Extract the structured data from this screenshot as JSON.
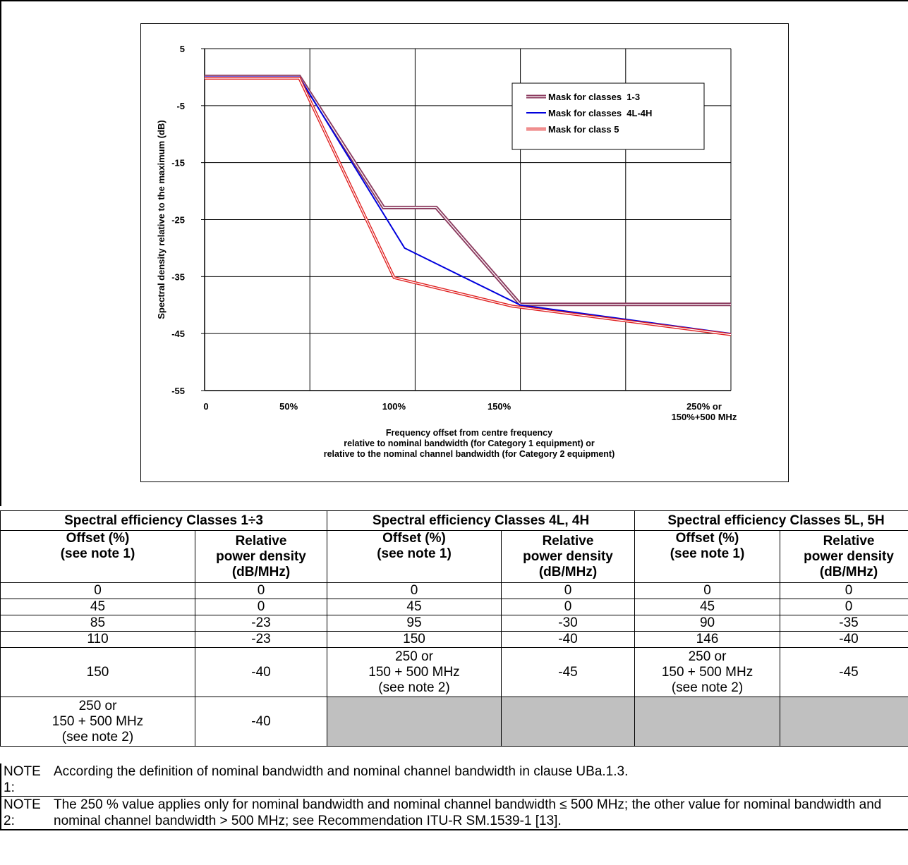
{
  "chart_data": {
    "type": "line",
    "title": "",
    "xlabel_lines": [
      "Frequency offset from centre frequency",
      "relative to nominal bandwidth (for Category 1 equipment) or",
      "relative to the nominal channel bandwidth (for Category 2 equipment)"
    ],
    "ylabel": "Spectral density relative to the maximum (dB)",
    "xlim": [
      0,
      250
    ],
    "ylim": [
      -55,
      5
    ],
    "yticks": [
      "5",
      "-5",
      "-15",
      "-25",
      "-35",
      "-45",
      "-55"
    ],
    "xtick_labels": [
      {
        "x": 0,
        "lines": [
          "0"
        ]
      },
      {
        "x": 50,
        "lines": [
          "50%"
        ]
      },
      {
        "x": 100,
        "lines": [
          "100%"
        ]
      },
      {
        "x": 150,
        "lines": [
          "150%"
        ]
      },
      {
        "x": 250,
        "lines": [
          "250% or",
          "150%+500 MHz"
        ]
      }
    ],
    "grid": true,
    "legend_position": "top-right",
    "series": [
      {
        "name": "Mask for classes  1-3",
        "color": "#8b3a5e",
        "x": [
          0,
          45,
          85,
          110,
          150,
          250
        ],
        "y": [
          0,
          0,
          -23,
          -23,
          -40,
          -40
        ]
      },
      {
        "name": "Mask for classes  4L-4H",
        "color": "#0000dd",
        "x": [
          0,
          45,
          95,
          150,
          250
        ],
        "y": [
          0,
          0,
          -30,
          -40,
          -45
        ]
      },
      {
        "name": "Mask for class 5",
        "color": "#e02020",
        "x": [
          0,
          45,
          90,
          146,
          250
        ],
        "y": [
          0,
          0,
          -35,
          -40,
          -45
        ]
      }
    ]
  },
  "table": {
    "groups": [
      "Spectral efficiency Classes 1÷3",
      "Spectral efficiency Classes 4L, 4H",
      "Spectral efficiency Classes 5L, 5H"
    ],
    "offset_header": [
      "Offset (%)",
      "(see note 1)"
    ],
    "power_header": [
      "Relative",
      "power density",
      "(dB/MHz)"
    ],
    "rows": [
      [
        "0",
        "0",
        "0",
        "0",
        "0",
        "0"
      ],
      [
        "45",
        "0",
        "45",
        "0",
        "45",
        "0"
      ],
      [
        "85",
        "-23",
        "95",
        "-30",
        "90",
        "-35"
      ],
      [
        "110",
        "-23",
        "150",
        "-40",
        "146",
        "-40"
      ]
    ],
    "row5": {
      "c1": "150",
      "c2": "-40",
      "c3": [
        "250 or",
        "150 + 500 MHz",
        "(see note 2)"
      ],
      "c4": "-45",
      "c5": [
        "250 or",
        "150 + 500 MHz",
        "(see note 2)"
      ],
      "c6": "-45"
    },
    "row6": {
      "c1": [
        "250 or",
        "150 + 500 MHz",
        "(see note 2)"
      ],
      "c2": "-40"
    }
  },
  "notes": [
    {
      "label": "NOTE 1:",
      "text": "According the definition of nominal bandwidth and nominal channel bandwidth in clause UBa.1.3."
    },
    {
      "label": "NOTE 2:",
      "text": "The 250 % value applies only for nominal bandwidth and nominal channel bandwidth ≤ 500 MHz; the other value for nominal bandwidth and nominal channel bandwidth > 500 MHz; see Recommendation ITU-R SM.1539-1 [13]."
    }
  ]
}
